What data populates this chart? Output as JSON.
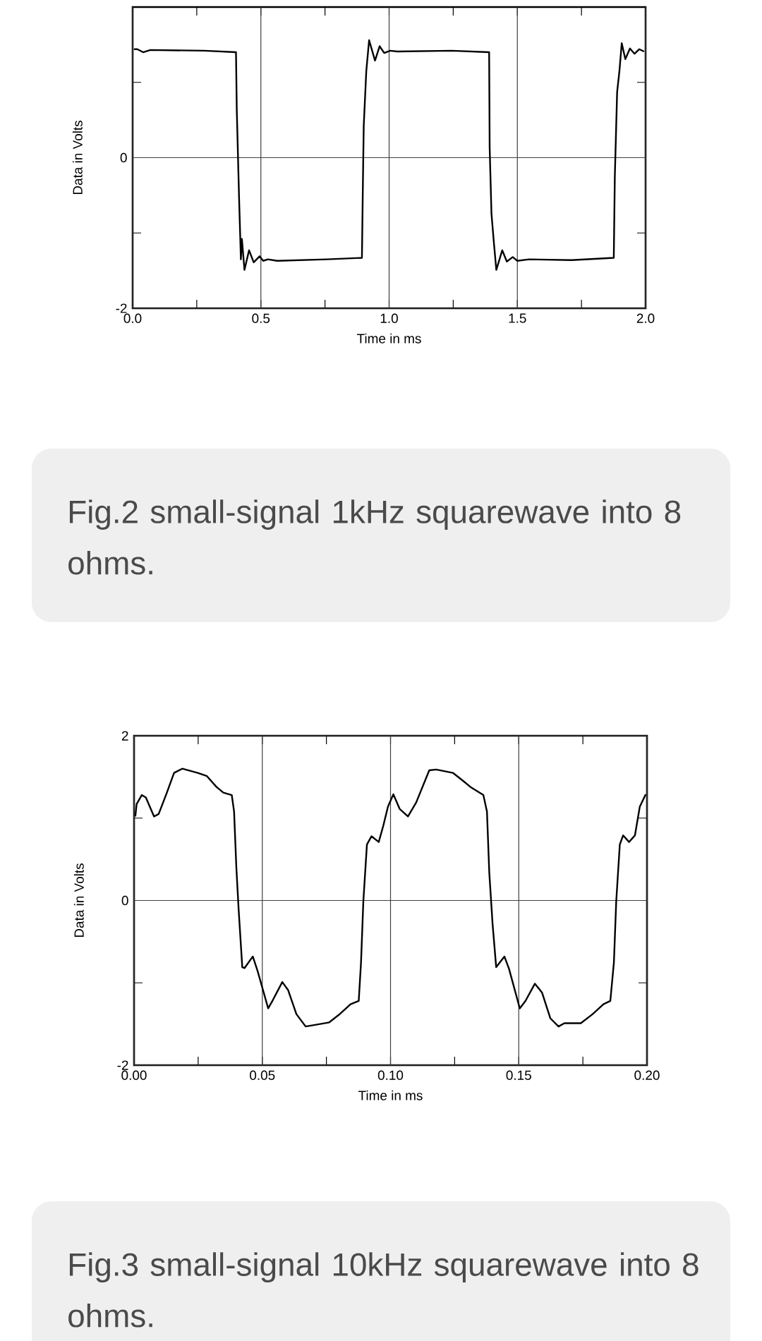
{
  "chart_data": [
    {
      "type": "line",
      "xlabel": "Time in ms",
      "ylabel": "Data in Volts",
      "grid": true,
      "xlim": [
        0,
        2
      ],
      "ylim": [
        -2,
        2
      ],
      "xticks": [
        {
          "value": 0,
          "label": "0.0"
        },
        {
          "value": 0.25,
          "label": null
        },
        {
          "value": 0.5,
          "label": "0.5"
        },
        {
          "value": 0.75,
          "label": null
        },
        {
          "value": 1,
          "label": "1.0"
        },
        {
          "value": 1.25,
          "label": null
        },
        {
          "value": 1.5,
          "label": "1.5"
        },
        {
          "value": 1.75,
          "label": null
        },
        {
          "value": 2,
          "label": "2.0"
        }
      ],
      "yticks": [
        -2,
        {
          "value": -1,
          "label": null
        },
        0,
        {
          "value": 1,
          "label": null
        },
        {
          "value": 2,
          "label": null
        }
      ],
      "series": [
        {
          "color": "#000000",
          "x": [
            0.005,
            0.018,
            0.041,
            0.069,
            0.28,
            0.403,
            0.406,
            0.415,
            0.42,
            0.422,
            0.426,
            0.436,
            0.454,
            0.472,
            0.495,
            0.509,
            0.527,
            0.564,
            0.757,
            0.894,
            0.897,
            0.901,
            0.911,
            0.922,
            0.945,
            0.963,
            0.981,
            1.004,
            1.032,
            1.243,
            1.39,
            1.392,
            1.399,
            1.408,
            1.418,
            1.441,
            1.459,
            1.482,
            1.5,
            1.546,
            1.711,
            1.876,
            1.88,
            1.889,
            1.898,
            1.907,
            1.921,
            1.939,
            1.957,
            1.975,
            1.994
          ],
          "values": [
            1.44,
            1.44,
            1.4,
            1.43,
            1.42,
            1.4,
            0.64,
            -0.54,
            -1.11,
            -1.35,
            -1.08,
            -1.49,
            -1.23,
            -1.39,
            -1.31,
            -1.37,
            -1.35,
            -1.37,
            -1.35,
            -1.33,
            -0.54,
            0.42,
            1.15,
            1.56,
            1.29,
            1.48,
            1.39,
            1.42,
            1.41,
            1.42,
            1.4,
            0.14,
            -0.74,
            -1.11,
            -1.49,
            -1.23,
            -1.38,
            -1.32,
            -1.37,
            -1.35,
            -1.36,
            -1.33,
            -0.26,
            0.87,
            1.15,
            1.52,
            1.31,
            1.45,
            1.38,
            1.44,
            1.41
          ]
        }
      ],
      "annotations": [
        "Fig.2 small-signal 1kHz squarewave into 8 ohms."
      ]
    },
    {
      "type": "line",
      "xlabel": "Time in ms",
      "ylabel": "Data in Volts",
      "grid": true,
      "xlim": [
        0,
        0.2
      ],
      "ylim": [
        -2,
        2
      ],
      "xticks": [
        {
          "value": 0,
          "label": "0.00"
        },
        {
          "value": 0.025,
          "label": null
        },
        {
          "value": 0.05,
          "label": "0.05"
        },
        {
          "value": 0.075,
          "label": null
        },
        {
          "value": 0.1,
          "label": "0.10"
        },
        {
          "value": 0.125,
          "label": null
        },
        {
          "value": 0.15,
          "label": "0.15"
        },
        {
          "value": 0.175,
          "label": null
        },
        {
          "value": 0.2,
          "label": "0.20"
        }
      ],
      "yticks": [
        -2,
        {
          "value": -1,
          "label": null
        },
        0,
        {
          "value": 1,
          "label": null
        },
        2
      ],
      "series": [
        {
          "color": "#000000",
          "x": [
            0.0005,
            0.001,
            0.003,
            0.0046,
            0.0078,
            0.0096,
            0.0128,
            0.0156,
            0.0188,
            0.0248,
            0.0284,
            0.0321,
            0.0348,
            0.0381,
            0.039,
            0.0399,
            0.0408,
            0.0422,
            0.0431,
            0.0463,
            0.0482,
            0.0523,
            0.0541,
            0.0578,
            0.0601,
            0.0633,
            0.0669,
            0.0706,
            0.0761,
            0.0798,
            0.0844,
            0.0876,
            0.0885,
            0.0894,
            0.0908,
            0.0926,
            0.0954,
            0.0972,
            0.099,
            0.1011,
            0.1036,
            0.1068,
            0.11,
            0.1151,
            0.1178,
            0.1243,
            0.1284,
            0.1311,
            0.1362,
            0.1376,
            0.1385,
            0.1398,
            0.1412,
            0.1444,
            0.1462,
            0.1504,
            0.1526,
            0.1563,
            0.1591,
            0.1623,
            0.1655,
            0.1678,
            0.1742,
            0.1788,
            0.183,
            0.1857,
            0.1871,
            0.188,
            0.1894,
            0.1907,
            0.193,
            0.1953,
            0.1972,
            0.1995
          ],
          "values": [
            1.02,
            1.17,
            1.28,
            1.25,
            1.02,
            1.05,
            1.31,
            1.55,
            1.6,
            1.55,
            1.51,
            1.38,
            1.31,
            1.28,
            1.08,
            0.39,
            -0.12,
            -0.81,
            -0.82,
            -0.68,
            -0.86,
            -1.31,
            -1.21,
            -0.99,
            -1.09,
            -1.38,
            -1.53,
            -1.51,
            -1.48,
            -1.39,
            -1.26,
            -1.22,
            -0.75,
            -0.01,
            0.68,
            0.78,
            0.71,
            0.91,
            1.14,
            1.29,
            1.11,
            1.02,
            1.19,
            1.58,
            1.59,
            1.55,
            1.45,
            1.38,
            1.28,
            1.08,
            0.34,
            -0.29,
            -0.81,
            -0.68,
            -0.83,
            -1.31,
            -1.22,
            -1.01,
            -1.12,
            -1.43,
            -1.53,
            -1.49,
            -1.49,
            -1.38,
            -1.26,
            -1.22,
            -0.75,
            -0.01,
            0.68,
            0.79,
            0.71,
            0.79,
            1.14,
            1.29
          ]
        }
      ],
      "annotations": [
        "Fig.3 small-signal 10kHz squarewave into 8 ohms."
      ]
    }
  ]
}
